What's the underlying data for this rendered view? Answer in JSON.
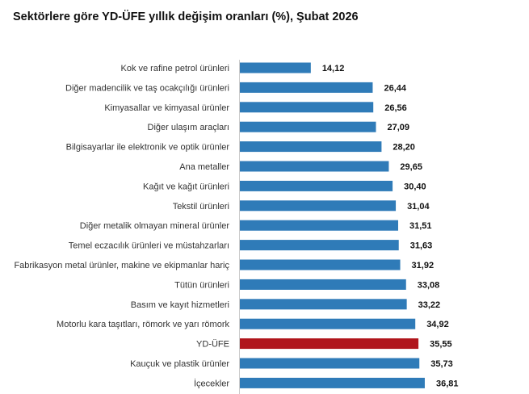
{
  "chart_data": {
    "type": "bar",
    "orientation": "horizontal",
    "title": "Sektörlere göre YD-ÜFE yıllık değişim oranları (%), Şubat 2026",
    "categories": [
      "Kok ve rafine petrol ürünleri",
      "Diğer madencilik ve taş ocakçılığı ürünleri",
      "Kimyasallar ve kimyasal ürünler",
      "Diğer ulaşım araçları",
      "Bilgisayarlar ile elektronik ve optik ürünler",
      "Ana metaller",
      "Kağıt ve kağıt ürünleri",
      "Tekstil ürünleri",
      "Diğer metalik olmayan mineral ürünler",
      "Temel eczacılık ürünleri ve müstahzarları",
      "Fabrikasyon metal ürünler, makine ve ekipmanlar hariç",
      "Tütün ürünleri",
      "Basım ve kayıt hizmetleri",
      "Motorlu kara taşıtları, römork ve yarı römork",
      "YD-ÜFE",
      "Kauçuk ve plastik ürünler",
      "İçecekler"
    ],
    "values": [
      14.12,
      26.44,
      26.56,
      27.09,
      28.2,
      29.65,
      30.4,
      31.04,
      31.51,
      31.63,
      31.92,
      33.08,
      33.22,
      34.92,
      35.55,
      35.73,
      36.81
    ],
    "value_labels": [
      "14,12",
      "26,44",
      "26,56",
      "27,09",
      "28,20",
      "29,65",
      "30,40",
      "31,04",
      "31,51",
      "31,63",
      "31,92",
      "33,08",
      "33,22",
      "34,92",
      "35,55",
      "35,73",
      "36,81"
    ],
    "highlight_category": "YD-ÜFE",
    "colors": {
      "bar": "#2f7bb8",
      "highlight": "#b0151c"
    },
    "xlim": [
      0,
      40
    ],
    "grid": false,
    "legend": "none"
  }
}
